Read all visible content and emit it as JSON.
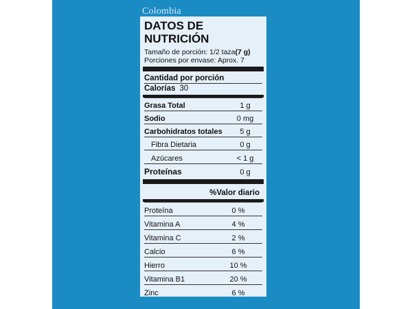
{
  "country": "Colombia",
  "label": {
    "title_line1": "DATOS DE",
    "title_line2": "NUTRICIÓN",
    "serving_size_label": "Tamaño de porción: 1/2 taza",
    "serving_size_value": "(7 g)",
    "servings_per_container": "Porciones por envase: Aprox. 7",
    "amount_per_serving": "Cantidad por porción",
    "calories_label": "Calorías",
    "calories_value": "30",
    "nutrients": [
      {
        "name": "Grasa Total",
        "value": "1 g"
      },
      {
        "name": "Sodio",
        "value": "0 mg"
      },
      {
        "name": "Carbohidratos totales",
        "value": "5 g"
      },
      {
        "name": "Fibra Dietaria",
        "value": "0 g"
      },
      {
        "name": "Azúcares",
        "value": "< 1 g"
      },
      {
        "name": "Proteínas",
        "value": "0 g"
      }
    ],
    "daily_value_header": "%Valor diario",
    "vitamins": [
      {
        "name": "Proteína",
        "value": "0 %"
      },
      {
        "name": "Vitamina A",
        "value": "4 %"
      },
      {
        "name": "Vitamina C",
        "value": "2 %"
      },
      {
        "name": "Calcio",
        "value": "6 %"
      },
      {
        "name": "Hierro",
        "value": "10 %"
      },
      {
        "name": "Vitamina B1",
        "value": "20 %"
      },
      {
        "name": "Zinc",
        "value": "6 %"
      }
    ]
  }
}
